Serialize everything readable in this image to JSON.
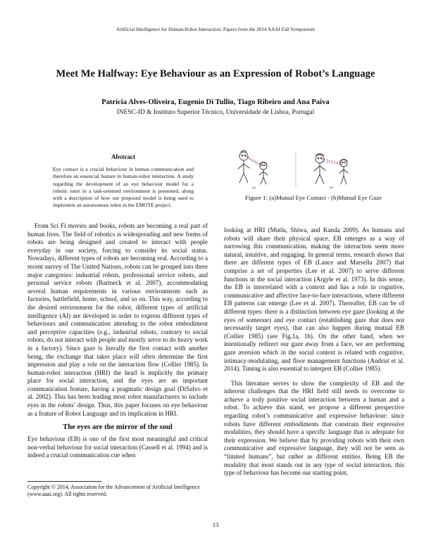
{
  "header": "Artificial Intelligence for Human-Robot Interaction: Papers from the 2014 AAAI Fall Symposium",
  "title": "Meet Me Halfway: Eye Behaviour as an Expression of Robot’s Language",
  "authors": "Patrícia Alves-Oliveira, Eugenio Di Tullio, Tiago Ribeiro and Ana Paiva",
  "affiliation": "INESC-ID & Instituto Superior Técnico, Universidade de Lisboa, Portugal",
  "abstract": {
    "heading": "Abstract",
    "text": "Eye contact is a crucial behaviour in human communication and therefore an essencial feature in human-robot interaction. A study regarding the development of an eye behaviour model for a robotic tutor in a task-oriented environment is presented, along with a description of how our proposed model is being used to implement an autonomous robot in the EMOTE project."
  },
  "figure": {
    "caption": "Figure 1: (a)Mutual Eye Contact - (b)Mutual Eye Gaze",
    "label_a": "(a)",
    "label_b": "(b)",
    "colors": {
      "line_red": "#d0323a",
      "line_blue": "#3a5bd0"
    }
  },
  "left_column": {
    "para1": "From Sci Fi movies and books, robots are becoming a real part of human lives. The field of robotics is widespreading and new forms of robots are being designed and created to interact with people everyday in our society, forcing to consider its social status. Nowadays, different types of robots are becoming real. According to a recent survey of The United Nations, robots can be grouped into three major categories: industrial robots, professional service robots, and personal service robots (Bartneck et al. 2007), accommodating several human requirements in various environments such as factories, battlefield, home, school, and so on. This way, according to the desired environment for the robot, different types of artificial intelligence (AI) are developed in order to express different types of behaviours and communication attending to the robot embodiment and perceptive capacities (e.g., industrial robots, contrary to social robots, do not interact with people and mostly serve to do heavy work in a factory). Since gaze is literally the first contact with another being, the exchange that takes place will often determine the first impression and play a role on the interaction flow (Collier 1985). In human-robot interaction (HRI) the head is implicitly the primary place for social interaction, and the eyes are an important communication feature, having a pragmatic design goal (DiSalvo et al. 2002). This has been leading most robot manufacturers to include eyes in the robots’ design. Thus, this paper focuses on eye behaviour as a feature of Robot Language and its implication in HRI.",
    "section_heading": "The eyes are the mirror of the soul",
    "para2": "Eye behaviour (EB) is one of the first most meaningful and critical non-verbal behaviour for social interaction (Cassell et al. 1994) and is indeed a crucial communication cue when"
  },
  "copyright": "Copyright © 2014, Association for the Advancement of Artificial Intelligence (www.aaai.org). All rights reserved.",
  "right_column": {
    "para1": "looking at HRI (Mutlu, Shiwa, and Kanda 2009). As humans and robots will share their physical space, EB emerges as a way of narrowing this communication, making the interaction seem more natural, intuitive, and engaging. In general terms, research shows that there are different types of EB (Lance and Marsella 2007) that comprise a set of properties (Lee et al. 2007) to serve different functions in the social interaction (Argyle et al. 1973). In this sense, the EB is interrelated with a context and has a role in cognitive, communicative and affective face-to-face interactions, where different EB patterns can emerge (Lee et al. 2007). Thereafter, EB can be of different types: there is a distinction between eye gaze (looking at the eyes of someone) and eye contact (establishing gaze that does not necessarily target eyes), that can also happen during mutual EB (Collier 1985) (see Fig.1a, 1b). On the other hand, when we intentionally redirect our gaze away from a face, we are performing gaze aversion which in the social context is related with cognitive, intimacy-modulating, and floor management functions (Andrist et al. 2014). Timing is also essential to interpret EB (Collier 1985).",
    "para2": "This literature serves to show the complexity of EB and the inherent challenges that the HRI field still needs to overcome to achieve a truly positive social interaction between a human and a robot. To achieve this stand, we propose a different perspective regarding robot’s communicative and expressive behaviour: since robots have different embodiments that constrain their expressive modalities, they should have a specific language that is adequate for their expression. We believe that by providing robots with their own communicative and expressive language, they will not be seen as “limited humans”, but rather as different entities. Being EB the modality that most stands out in any type of social interaction, this type of behaviour has become our starting point."
  },
  "page_number": "13"
}
